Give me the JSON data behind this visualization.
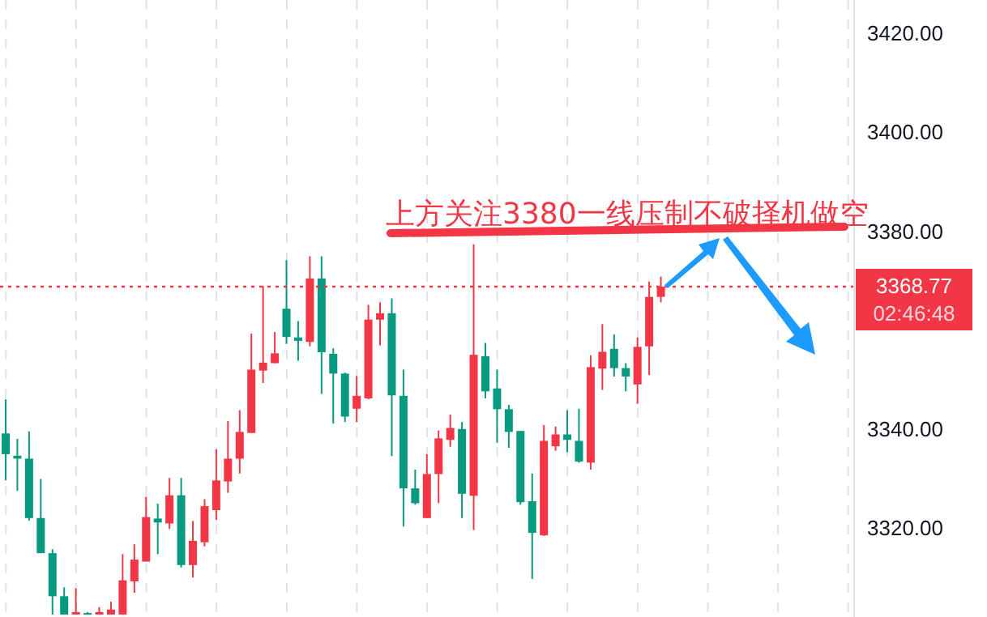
{
  "chart_data": {
    "type": "candlestick",
    "categories": [
      null,
      null,
      null,
      null,
      null,
      null,
      null,
      null,
      null,
      null,
      null,
      null,
      null,
      null,
      null,
      null,
      null,
      null,
      null,
      null,
      null,
      null,
      null,
      null,
      null,
      null,
      null,
      null,
      null,
      null,
      null,
      null,
      null,
      null,
      null,
      null,
      null,
      null,
      null,
      null,
      null,
      null,
      null,
      null,
      null,
      null,
      null,
      null,
      null,
      null,
      null,
      null,
      null,
      null,
      null,
      null,
      null,
      null,
      null,
      null,
      null,
      null,
      null,
      null,
      null,
      null,
      null,
      null,
      null,
      null,
      null,
      null,
      null
    ],
    "ohlc": [
      [
        3339.1,
        3346.0,
        3329.6,
        3334.9
      ],
      [
        3334.6,
        3338.0,
        3327.5,
        3334.0
      ],
      [
        3334.0,
        3339.5,
        3321.5,
        3322.0
      ],
      [
        3322.0,
        3329.9,
        3314.9,
        3314.9
      ],
      [
        3314.9,
        3315.7,
        3302.5,
        3306.2
      ],
      [
        3306.2,
        3308.0,
        3302.5,
        3302.5
      ],
      [
        3302.5,
        3307.8,
        3302.5,
        3303.0
      ],
      [
        3302.8,
        3303.0,
        3302.5,
        3302.5
      ],
      [
        3302.5,
        3304.0,
        3302.5,
        3303.0
      ],
      [
        3302.5,
        3305.1,
        3302.5,
        3303.5
      ],
      [
        3302.5,
        3314.7,
        3302.5,
        3309.4
      ],
      [
        3309.2,
        3316.7,
        3306.9,
        3313.6
      ],
      [
        3313.2,
        3326.3,
        3313.2,
        3322.2
      ],
      [
        3321.9,
        3324.9,
        3314.7,
        3321.1
      ],
      [
        3320.9,
        3330.1,
        3319.8,
        3326.6
      ],
      [
        3326.6,
        3330.1,
        3312.0,
        3312.5
      ],
      [
        3312.5,
        3321.4,
        3310.0,
        3317.4
      ],
      [
        3317.1,
        3325.8,
        3316.3,
        3324.4
      ],
      [
        3323.6,
        3335.9,
        3321.6,
        3329.6
      ],
      [
        3329.4,
        3341.6,
        3327.1,
        3334.0
      ],
      [
        3334.0,
        3343.8,
        3331.0,
        3339.4
      ],
      [
        3339.2,
        3359.3,
        3339.2,
        3352.0
      ],
      [
        3351.8,
        3368.9,
        3349.3,
        3353.4
      ],
      [
        3353.3,
        3359.6,
        3353.3,
        3355.3
      ],
      [
        3364.3,
        3374.1,
        3357.2,
        3358.6
      ],
      [
        3358.5,
        3361.8,
        3353.8,
        3357.8
      ],
      [
        3357.6,
        3374.9,
        3356.7,
        3370.4
      ],
      [
        3370.4,
        3374.9,
        3347.1,
        3355.5
      ],
      [
        3355.2,
        3356.3,
        3341.1,
        3351.2
      ],
      [
        3351.2,
        3351.4,
        3341.4,
        3342.5
      ],
      [
        3344.1,
        3350.7,
        3341.4,
        3346.7
      ],
      [
        3346.2,
        3365.1,
        3346.0,
        3362.1
      ],
      [
        3362.1,
        3365.6,
        3356.9,
        3363.4
      ],
      [
        3363.4,
        3366.4,
        3334.5,
        3346.8
      ],
      [
        3346.7,
        3352.0,
        3320.3,
        3328.0
      ],
      [
        3328.0,
        3331.8,
        3324.7,
        3325.0
      ],
      [
        3322.0,
        3334.9,
        3322.0,
        3330.9
      ],
      [
        3330.9,
        3339.7,
        3325.0,
        3338.1
      ],
      [
        3337.8,
        3342.9,
        3336.4,
        3340.2
      ],
      [
        3340.0,
        3341.4,
        3322.0,
        3326.9
      ],
      [
        3326.5,
        3377.3,
        3319.6,
        3355.0
      ],
      [
        3354.7,
        3357.4,
        3346.2,
        3347.6
      ],
      [
        3348.2,
        3352.0,
        3337.2,
        3344.0
      ],
      [
        3344.0,
        3344.9,
        3336.2,
        3339.4
      ],
      [
        3339.6,
        3339.6,
        3324.7,
        3325.2
      ],
      [
        3325.4,
        3331.0,
        3309.7,
        3319.0
      ],
      [
        3318.5,
        3340.8,
        3318.4,
        3337.6
      ],
      [
        3336.5,
        3340.5,
        3335.6,
        3338.9
      ],
      [
        3338.9,
        3343.8,
        3335.3,
        3337.8
      ],
      [
        3337.6,
        3344.1,
        3333.2,
        3333.4
      ],
      [
        3333.2,
        3354.9,
        3331.8,
        3352.5
      ],
      [
        3352.2,
        3361.2,
        3347.9,
        3355.6
      ],
      [
        3356.2,
        3359.1,
        3350.6,
        3352.3
      ],
      [
        3352.3,
        3353.3,
        3347.6,
        3350.6
      ],
      [
        3349.0,
        3358.5,
        3345.1,
        3356.6
      ],
      [
        3356.7,
        3369.8,
        3350.9,
        3366.7
      ],
      [
        3366.7,
        3370.8,
        3365.6,
        3368.77
      ],
      null,
      null,
      null,
      null,
      null,
      null,
      null,
      null,
      null,
      null,
      null,
      null,
      null,
      null,
      null,
      null
    ],
    "colors": [
      "#089981",
      "#089981",
      "#089981",
      "#089981",
      "#089981",
      "#089981",
      "#f23645",
      "#089981",
      "#f23645",
      "#f23645",
      "#f23645",
      "#f23645",
      "#f23645",
      "#089981",
      "#f23645",
      "#089981",
      "#f23645",
      "#f23645",
      "#f23645",
      "#f23645",
      "#f23645",
      "#f23645",
      "#f23645",
      "#f23645",
      "#089981",
      "#089981",
      "#f23645",
      "#089981",
      "#089981",
      "#089981",
      "#f23645",
      "#f23645",
      "#f23645",
      "#089981",
      "#089981",
      "#089981",
      "#f23645",
      "#f23645",
      "#f23645",
      "#089981",
      "#f23645",
      "#089981",
      "#089981",
      "#089981",
      "#089981",
      "#089981",
      "#f23645",
      "#f23645",
      "#089981",
      "#089981",
      "#f23645",
      "#f23645",
      "#089981",
      "#089981",
      "#f23645",
      "#f23645",
      "#f23645",
      null,
      null,
      null,
      null,
      null,
      null,
      null,
      null,
      null,
      null,
      null,
      null,
      null,
      null,
      null,
      null
    ],
    "ylim": [
      3302,
      3426.7
    ],
    "yticks": [
      {
        "value": 3320,
        "label": "3320.00"
      },
      {
        "value": 3340,
        "label": "3340.00"
      },
      {
        "value": 3380,
        "label": "3380.00"
      },
      {
        "value": 3400,
        "label": "3400.00"
      },
      {
        "value": 3420,
        "label": "3420.00"
      }
    ],
    "tick_labels": "y",
    "grid": "x",
    "ref_lines": [
      {
        "axis": "y",
        "value": 3368.77,
        "label": "3368.77",
        "color": "#f23645",
        "line_style": "dotted"
      }
    ],
    "annotations": [
      "上方关注3380一线压制不破择机做空",
      "02:46:48"
    ]
  }
}
